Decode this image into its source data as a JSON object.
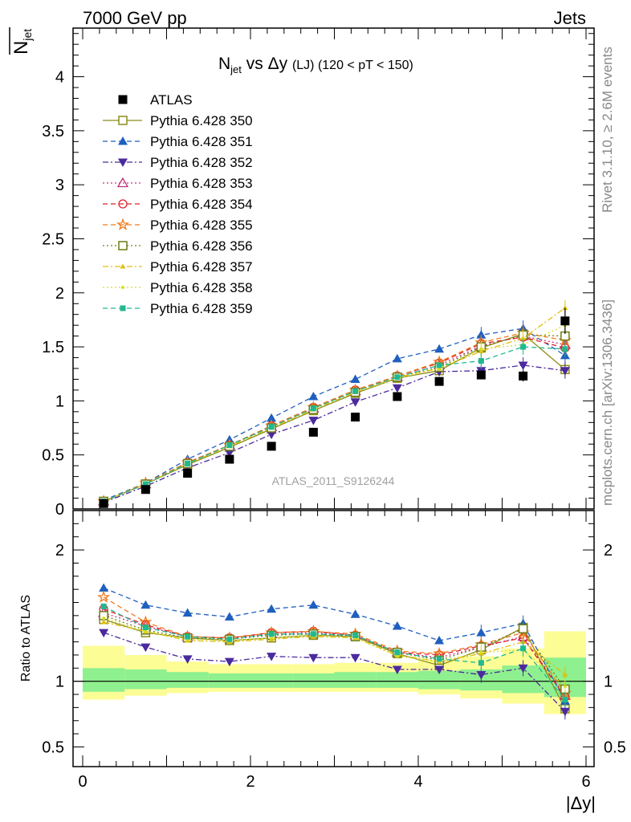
{
  "header": {
    "left": "7000 GeV pp",
    "right": "Jets"
  },
  "side_labels": {
    "rivet": "Rivet 3.1.10, ≥ 2.6M events",
    "mcplots": "mcplots.cern.ch [arXiv:1306.3436]"
  },
  "watermark": "ATLAS_2011_S9126244",
  "chart_data": [
    {
      "type": "scatter",
      "title_main": "N",
      "title_sub": "jet",
      "title_rest": " vs Δy ",
      "title_lj": "(LJ)",
      "title_range": " (120 < pT < 150)",
      "ylabel_main": "N",
      "ylabel_sub": "jet",
      "xlim": [
        -0.15,
        6.1
      ],
      "ylim": [
        0,
        4.45
      ],
      "y_ticks": [
        "0",
        "0.5",
        "1",
        "1.5",
        "2",
        "2.5",
        "3",
        "3.5",
        "4"
      ],
      "x": [
        0.25,
        0.75,
        1.25,
        1.75,
        2.25,
        2.75,
        3.25,
        3.75,
        4.25,
        4.75,
        5.25,
        5.75
      ],
      "data": {
        "name": "ATLAS",
        "values": [
          0.05,
          0.18,
          0.33,
          0.46,
          0.58,
          0.71,
          0.85,
          1.04,
          1.18,
          1.24,
          1.23,
          1.74
        ],
        "errors": [
          0.005,
          0.01,
          0.01,
          0.01,
          0.01,
          0.01,
          0.02,
          0.02,
          0.02,
          0.03,
          0.05,
          0.12
        ]
      },
      "series": [
        {
          "name": "Pythia 6.428 350",
          "color": "#8c8c1a",
          "dash": "solid",
          "marker": "square-open",
          "values": [
            0.07,
            0.23,
            0.41,
            0.57,
            0.74,
            0.91,
            1.07,
            1.21,
            1.28,
            1.49,
            1.62,
            1.29
          ]
        },
        {
          "name": "Pythia 6.428 351",
          "color": "#1f5fbf",
          "dash": "dashed",
          "marker": "triangle-up",
          "values": [
            0.08,
            0.24,
            0.46,
            0.64,
            0.84,
            1.04,
            1.2,
            1.39,
            1.48,
            1.61,
            1.67,
            1.42
          ]
        },
        {
          "name": "Pythia 6.428 352",
          "color": "#4b2a9e",
          "dash": "dashdot",
          "marker": "triangle-down",
          "values": [
            0.06,
            0.21,
            0.38,
            0.52,
            0.69,
            0.82,
            0.99,
            1.12,
            1.27,
            1.28,
            1.33,
            1.28
          ]
        },
        {
          "name": "Pythia 6.428 353",
          "color": "#c0307f",
          "dash": "dotted",
          "marker": "triangle-open",
          "values": [
            0.07,
            0.23,
            0.43,
            0.59,
            0.76,
            0.93,
            1.09,
            1.22,
            1.33,
            1.51,
            1.6,
            1.52
          ]
        },
        {
          "name": "Pythia 6.428 354",
          "color": "#e0202a",
          "dash": "dashed",
          "marker": "circle-open",
          "values": [
            0.07,
            0.23,
            0.43,
            0.59,
            0.77,
            0.94,
            1.1,
            1.23,
            1.35,
            1.53,
            1.59,
            1.49
          ]
        },
        {
          "name": "Pythia 6.428 355",
          "color": "#f07a1a",
          "dash": "dashed",
          "marker": "star-open",
          "values": [
            0.07,
            0.24,
            0.43,
            0.59,
            0.77,
            0.94,
            1.1,
            1.23,
            1.36,
            1.54,
            1.63,
            1.56
          ]
        },
        {
          "name": "Pythia 6.428 356",
          "color": "#6f7d12",
          "dash": "dotted",
          "marker": "square-open",
          "values": [
            0.07,
            0.23,
            0.42,
            0.58,
            0.75,
            0.92,
            1.08,
            1.22,
            1.31,
            1.5,
            1.61,
            1.6
          ]
        },
        {
          "name": "Pythia 6.428 357",
          "color": "#e0c010",
          "dash": "dashdot",
          "marker": "tri-small",
          "values": [
            0.07,
            0.23,
            0.42,
            0.58,
            0.75,
            0.92,
            1.08,
            1.22,
            1.3,
            1.46,
            1.58,
            1.86
          ]
        },
        {
          "name": "Pythia 6.428 358",
          "color": "#d6e020",
          "dash": "dotted",
          "marker": "dot",
          "values": [
            0.07,
            0.23,
            0.42,
            0.58,
            0.75,
            0.92,
            1.08,
            1.21,
            1.3,
            1.48,
            1.52,
            1.7
          ]
        },
        {
          "name": "Pythia 6.428 359",
          "color": "#20b890",
          "dash": "dashed",
          "marker": "square-small",
          "values": [
            0.07,
            0.23,
            0.42,
            0.59,
            0.76,
            0.93,
            1.09,
            1.22,
            1.33,
            1.37,
            1.5,
            1.48
          ]
        }
      ]
    },
    {
      "type": "scatter",
      "ylabel": "Ratio to ATLAS",
      "xlabel": "|Δy|",
      "ylim": [
        0.35,
        2.3
      ],
      "y_ticks": [
        "0.5",
        "1",
        "2"
      ],
      "x_ticks": [
        "0",
        "2",
        "4",
        "6"
      ],
      "x_edges": [
        0,
        0.5,
        1,
        1.5,
        2,
        2.5,
        3,
        3.5,
        4,
        4.5,
        5,
        5.5,
        6
      ],
      "band_inner": [
        [
          0.92,
          1.1
        ],
        [
          0.94,
          1.09
        ],
        [
          0.95,
          1.07
        ],
        [
          0.95,
          1.06
        ],
        [
          0.95,
          1.06
        ],
        [
          0.95,
          1.06
        ],
        [
          0.95,
          1.07
        ],
        [
          0.95,
          1.07
        ],
        [
          0.94,
          1.08
        ],
        [
          0.93,
          1.09
        ],
        [
          0.91,
          1.12
        ],
        [
          0.88,
          1.18
        ]
      ],
      "band_outer": [
        [
          0.86,
          1.27
        ],
        [
          0.89,
          1.2
        ],
        [
          0.91,
          1.15
        ],
        [
          0.92,
          1.13
        ],
        [
          0.92,
          1.13
        ],
        [
          0.92,
          1.13
        ],
        [
          0.92,
          1.14
        ],
        [
          0.92,
          1.14
        ],
        [
          0.9,
          1.16
        ],
        [
          0.87,
          1.19
        ],
        [
          0.83,
          1.25
        ],
        [
          0.75,
          1.38
        ]
      ],
      "series_ratio": [
        [
          1.47,
          1.37,
          1.33,
          1.31,
          1.33,
          1.35,
          1.34,
          1.21,
          1.12,
          1.24,
          1.41,
          0.79
        ],
        [
          1.71,
          1.58,
          1.52,
          1.49,
          1.55,
          1.58,
          1.51,
          1.42,
          1.31,
          1.37,
          1.44,
          0.85
        ],
        [
          1.37,
          1.26,
          1.17,
          1.15,
          1.19,
          1.18,
          1.18,
          1.09,
          1.09,
          1.05,
          1.1,
          0.77
        ],
        [
          1.52,
          1.42,
          1.34,
          1.33,
          1.36,
          1.37,
          1.35,
          1.22,
          1.18,
          1.26,
          1.34,
          0.89
        ],
        [
          1.55,
          1.43,
          1.34,
          1.33,
          1.37,
          1.38,
          1.35,
          1.22,
          1.2,
          1.27,
          1.33,
          0.88
        ],
        [
          1.64,
          1.45,
          1.34,
          1.33,
          1.37,
          1.38,
          1.36,
          1.23,
          1.21,
          1.28,
          1.37,
          0.91
        ],
        [
          1.5,
          1.39,
          1.33,
          1.32,
          1.35,
          1.36,
          1.34,
          1.22,
          1.16,
          1.26,
          1.4,
          0.94
        ],
        [
          1.45,
          1.38,
          1.31,
          1.3,
          1.32,
          1.34,
          1.33,
          1.2,
          1.15,
          1.21,
          1.3,
          1.05
        ],
        [
          1.48,
          1.38,
          1.32,
          1.31,
          1.33,
          1.35,
          1.33,
          1.19,
          1.15,
          1.22,
          1.24,
          0.96
        ],
        [
          1.57,
          1.41,
          1.34,
          1.32,
          1.36,
          1.36,
          1.35,
          1.22,
          1.17,
          1.14,
          1.25,
          0.86
        ]
      ]
    }
  ]
}
